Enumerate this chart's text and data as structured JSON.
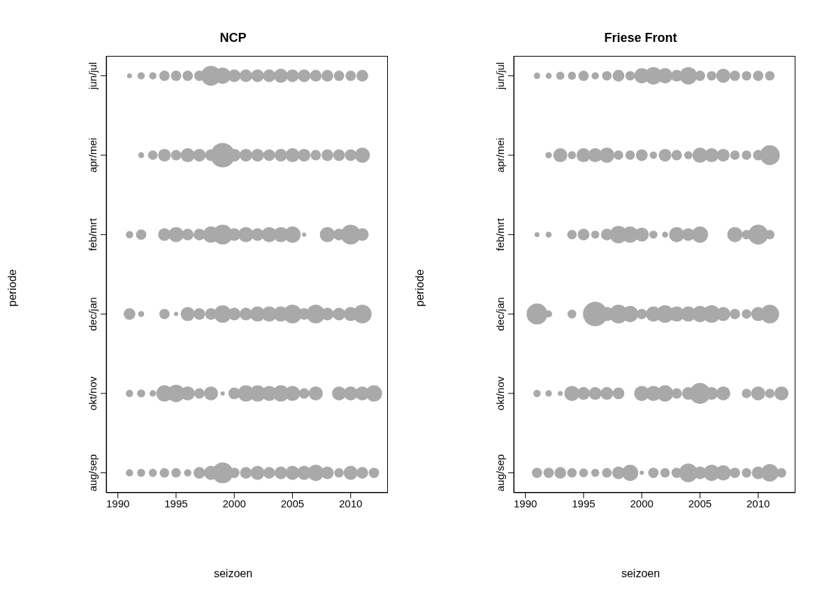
{
  "chart_data": [
    {
      "type": "bubble",
      "orientation": "horizontal",
      "title": "NCP",
      "xlabel": "seizoen",
      "ylabel": "periode",
      "xlim": [
        1989,
        2013.2
      ],
      "xticks": [
        1990,
        1995,
        2000,
        2005,
        2010
      ],
      "categories": [
        "jun/jul",
        "apr/mei",
        "feb/mrt",
        "dec/jan",
        "okt/nov",
        "aug/sep"
      ],
      "series": [
        {
          "color": "#a9a9a9",
          "values": [
            1991,
            null,
            1991,
            1991,
            1991,
            1991
          ],
          "sizes": [
            0.04,
            null,
            0.09,
            0.23,
            0.09,
            0.09
          ]
        },
        {
          "color": "#a9a9a9",
          "values": [
            1992,
            1992,
            1992,
            1992,
            1992,
            1992
          ],
          "sizes": [
            0.09,
            0.06,
            0.18,
            0.06,
            0.11,
            0.11
          ]
        },
        {
          "color": "#a9a9a9",
          "values": [
            1993,
            1993,
            null,
            null,
            1993,
            1993
          ],
          "sizes": [
            0.09,
            0.15,
            null,
            null,
            0.07,
            0.11
          ]
        },
        {
          "color": "#a9a9a9",
          "values": [
            1994,
            1994,
            1994,
            1994,
            1994,
            1994
          ],
          "sizes": [
            0.18,
            0.27,
            0.27,
            0.18,
            0.44,
            0.15
          ]
        },
        {
          "color": "#a9a9a9",
          "values": [
            1995,
            1995,
            1995,
            1995,
            1995,
            1995
          ],
          "sizes": [
            0.18,
            0.18,
            0.38,
            0.03,
            0.51,
            0.15
          ]
        },
        {
          "color": "#a9a9a9",
          "values": [
            1996,
            1996,
            1996,
            1996,
            1996,
            1996
          ],
          "sizes": [
            0.18,
            0.33,
            0.23,
            0.33,
            0.33,
            0.09
          ]
        },
        {
          "color": "#a9a9a9",
          "values": [
            1997,
            1997,
            1997,
            1997,
            1997,
            1997
          ],
          "sizes": [
            0.18,
            0.27,
            0.23,
            0.23,
            0.18,
            0.23
          ]
        },
        {
          "color": "#a9a9a9",
          "values": [
            1998,
            1998,
            1998,
            1998,
            1998,
            1998
          ],
          "sizes": [
            0.66,
            0.23,
            0.44,
            0.23,
            0.33,
            0.33
          ]
        },
        {
          "color": "#a9a9a9",
          "values": [
            1999,
            1999,
            1999,
            1999,
            1999,
            1999
          ],
          "sizes": [
            0.44,
            1.0,
            0.66,
            0.51,
            0.03,
            0.73
          ]
        },
        {
          "color": "#a9a9a9",
          "values": [
            2000,
            2000,
            2000,
            2000,
            2000,
            2000
          ],
          "sizes": [
            0.27,
            0.27,
            0.27,
            0.27,
            0.23,
            0.18
          ]
        },
        {
          "color": "#a9a9a9",
          "values": [
            2001,
            2001,
            2001,
            2001,
            2001,
            2001
          ],
          "sizes": [
            0.27,
            0.27,
            0.38,
            0.27,
            0.44,
            0.23
          ]
        },
        {
          "color": "#a9a9a9",
          "values": [
            2002,
            2002,
            2002,
            2002,
            2002,
            2002
          ],
          "sizes": [
            0.27,
            0.27,
            0.27,
            0.38,
            0.44,
            0.33
          ]
        },
        {
          "color": "#a9a9a9",
          "values": [
            2003,
            2003,
            2003,
            2003,
            2003,
            2003
          ],
          "sizes": [
            0.27,
            0.23,
            0.38,
            0.38,
            0.38,
            0.23
          ]
        },
        {
          "color": "#a9a9a9",
          "values": [
            2004,
            2004,
            2004,
            2004,
            2004,
            2004
          ],
          "sizes": [
            0.33,
            0.27,
            0.38,
            0.38,
            0.44,
            0.27
          ]
        },
        {
          "color": "#a9a9a9",
          "values": [
            2005,
            2005,
            2005,
            2005,
            2005,
            2005
          ],
          "sizes": [
            0.27,
            0.33,
            0.44,
            0.58,
            0.38,
            0.33
          ]
        },
        {
          "color": "#a9a9a9",
          "values": [
            2006,
            2006,
            2006,
            2006,
            2006,
            2006
          ],
          "sizes": [
            0.27,
            0.27,
            0.03,
            0.23,
            0.18,
            0.33
          ]
        },
        {
          "color": "#a9a9a9",
          "values": [
            2007,
            2007,
            null,
            2007,
            2007,
            2007
          ],
          "sizes": [
            0.23,
            0.18,
            null,
            0.58,
            0.33,
            0.44
          ]
        },
        {
          "color": "#a9a9a9",
          "values": [
            2008,
            2008,
            2008,
            2008,
            null,
            2008
          ],
          "sizes": [
            0.23,
            0.23,
            0.38,
            0.27,
            null,
            0.27
          ]
        },
        {
          "color": "#a9a9a9",
          "values": [
            2009,
            2009,
            2009,
            2009,
            2009,
            2009
          ],
          "sizes": [
            0.18,
            0.23,
            0.23,
            0.27,
            0.33,
            0.15
          ]
        },
        {
          "color": "#a9a9a9",
          "values": [
            2010,
            2010,
            2010,
            2010,
            2010,
            2010
          ],
          "sizes": [
            0.18,
            0.23,
            0.66,
            0.33,
            0.33,
            0.33
          ]
        },
        {
          "color": "#a9a9a9",
          "values": [
            2011,
            2011,
            2011,
            2011,
            2011,
            2011
          ],
          "sizes": [
            0.23,
            0.38,
            0.27,
            0.58,
            0.33,
            0.23
          ]
        },
        {
          "color": "#a9a9a9",
          "values": [
            null,
            null,
            null,
            null,
            2012,
            2012
          ],
          "sizes": [
            null,
            null,
            null,
            null,
            0.44,
            0.18
          ]
        }
      ]
    },
    {
      "type": "bubble",
      "orientation": "horizontal",
      "title": "Friese Front",
      "xlabel": "seizoen",
      "ylabel": "periode",
      "xlim": [
        1989,
        2013.2
      ],
      "xticks": [
        1990,
        1995,
        2000,
        2005,
        2010
      ],
      "categories": [
        "jun/jul",
        "apr/mei",
        "feb/mrt",
        "dec/jan",
        "okt/nov",
        "aug/sep"
      ],
      "series": [
        {
          "color": "#a9a9a9",
          "values": [
            1991,
            null,
            1991,
            1991,
            1991,
            1991
          ],
          "sizes": [
            0.07,
            null,
            0.04,
            0.73,
            0.09,
            0.18
          ]
        },
        {
          "color": "#a9a9a9",
          "values": [
            1992,
            1992,
            1992,
            1992,
            1992,
            1992
          ],
          "sizes": [
            0.06,
            0.07,
            0.06,
            0.08,
            0.07,
            0.18
          ]
        },
        {
          "color": "#a9a9a9",
          "values": [
            1993,
            1993,
            null,
            null,
            1993,
            1993
          ],
          "sizes": [
            0.11,
            0.33,
            null,
            null,
            0.04,
            0.23
          ]
        },
        {
          "color": "#a9a9a9",
          "values": [
            1994,
            1994,
            1994,
            1994,
            1994,
            1994
          ],
          "sizes": [
            0.11,
            0.11,
            0.15,
            0.13,
            0.38,
            0.15
          ]
        },
        {
          "color": "#a9a9a9",
          "values": [
            1995,
            1995,
            1995,
            null,
            1995,
            1995
          ],
          "sizes": [
            0.18,
            0.33,
            0.23,
            null,
            0.27,
            0.13
          ]
        },
        {
          "color": "#a9a9a9",
          "values": [
            1996,
            1996,
            1996,
            1996,
            1996,
            1996
          ],
          "sizes": [
            0.09,
            0.33,
            0.11,
            1.0,
            0.27,
            0.11
          ]
        },
        {
          "color": "#a9a9a9",
          "values": [
            1997,
            1997,
            1997,
            1997,
            1997,
            1997
          ],
          "sizes": [
            0.15,
            0.38,
            0.23,
            0.33,
            0.27,
            0.16
          ]
        },
        {
          "color": "#a9a9a9",
          "values": [
            1998,
            1998,
            1998,
            1998,
            1998,
            1998
          ],
          "sizes": [
            0.23,
            0.15,
            0.51,
            0.58,
            0.23,
            0.27
          ]
        },
        {
          "color": "#a9a9a9",
          "values": [
            1999,
            1999,
            1999,
            1999,
            null,
            1999
          ],
          "sizes": [
            0.15,
            0.15,
            0.44,
            0.44,
            null,
            0.44
          ]
        },
        {
          "color": "#a9a9a9",
          "values": [
            2000,
            2000,
            2000,
            2000,
            2000,
            2000
          ],
          "sizes": [
            0.38,
            0.23,
            0.33,
            0.18,
            0.38,
            0.03
          ]
        },
        {
          "color": "#a9a9a9",
          "values": [
            2001,
            2001,
            2001,
            2001,
            2001,
            2001
          ],
          "sizes": [
            0.51,
            0.09,
            0.11,
            0.38,
            0.38,
            0.18
          ]
        },
        {
          "color": "#a9a9a9",
          "values": [
            2002,
            2002,
            2002,
            2002,
            2002,
            2002
          ],
          "sizes": [
            0.38,
            0.27,
            0.06,
            0.51,
            0.44,
            0.15
          ]
        },
        {
          "color": "#a9a9a9",
          "values": [
            2003,
            2003,
            2003,
            2003,
            2003,
            2003
          ],
          "sizes": [
            0.23,
            0.18,
            0.38,
            0.38,
            0.18,
            0.18
          ]
        },
        {
          "color": "#a9a9a9",
          "values": [
            2004,
            2004,
            2004,
            2004,
            2004,
            2004
          ],
          "sizes": [
            0.51,
            0.11,
            0.27,
            0.38,
            0.27,
            0.58
          ]
        },
        {
          "color": "#a9a9a9",
          "values": [
            2005,
            2005,
            2005,
            2005,
            2005,
            2005
          ],
          "sizes": [
            0.18,
            0.38,
            0.44,
            0.44,
            0.73,
            0.27
          ]
        },
        {
          "color": "#a9a9a9",
          "values": [
            2006,
            2006,
            null,
            2006,
            2006,
            2006
          ],
          "sizes": [
            0.15,
            0.33,
            null,
            0.51,
            0.27,
            0.44
          ]
        },
        {
          "color": "#a9a9a9",
          "values": [
            2007,
            2007,
            null,
            2007,
            2007,
            2007
          ],
          "sizes": [
            0.33,
            0.27,
            null,
            0.33,
            0.33,
            0.38
          ]
        },
        {
          "color": "#a9a9a9",
          "values": [
            2008,
            2008,
            2008,
            2008,
            null,
            2008
          ],
          "sizes": [
            0.18,
            0.15,
            0.38,
            0.18,
            null,
            0.18
          ]
        },
        {
          "color": "#a9a9a9",
          "values": [
            2009,
            2009,
            2009,
            2009,
            2009,
            2009
          ],
          "sizes": [
            0.15,
            0.15,
            0.15,
            0.15,
            0.15,
            0.15
          ]
        },
        {
          "color": "#a9a9a9",
          "values": [
            2010,
            2010,
            2010,
            2010,
            2010,
            2010
          ],
          "sizes": [
            0.18,
            0.18,
            0.66,
            0.33,
            0.33,
            0.27
          ]
        },
        {
          "color": "#a9a9a9",
          "values": [
            2011,
            2011,
            2011,
            2011,
            2011,
            2011
          ],
          "sizes": [
            0.15,
            0.66,
            0.15,
            0.58,
            0.15,
            0.51
          ]
        },
        {
          "color": "#a9a9a9",
          "values": [
            null,
            null,
            null,
            null,
            2012,
            2012
          ],
          "sizes": [
            null,
            null,
            null,
            null,
            0.33,
            0.15
          ]
        }
      ]
    }
  ]
}
